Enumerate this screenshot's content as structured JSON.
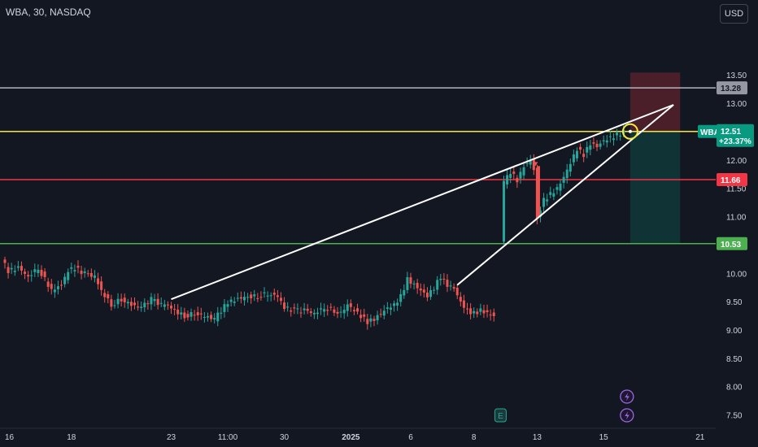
{
  "header": {
    "symbol": "WBA, 30, NASDAQ",
    "currency": "USD"
  },
  "colors": {
    "background": "#131722",
    "up": "#26a69a",
    "down": "#ef5350",
    "yellow": "#f5e83b",
    "red_line": "#f23645",
    "green_line": "#4caf50",
    "gray_line": "#b2b5be"
  },
  "chart_data": {
    "type": "candlestick",
    "ylim": [
      7.3,
      14.4
    ],
    "x_ticks": [
      {
        "label": "16",
        "x": 0
      },
      {
        "label": "18",
        "x": 2
      },
      {
        "label": "23",
        "x": 5
      },
      {
        "label": "11:00",
        "x": 6.7
      },
      {
        "label": "30",
        "x": 8.4
      },
      {
        "label": "2025",
        "x": 10.4
      },
      {
        "label": "6",
        "x": 12.2
      },
      {
        "label": "8",
        "x": 14.1
      },
      {
        "label": "13",
        "x": 16
      },
      {
        "label": "15",
        "x": 18
      },
      {
        "label": "21",
        "x": 20.9
      }
    ],
    "y_ticks": [
      "7.50",
      "8.00",
      "8.50",
      "9.00",
      "9.50",
      "10.00",
      "10.50",
      "11.00",
      "11.50",
      "12.00",
      "12.50",
      "13.00",
      "13.50"
    ],
    "price_path": [
      [
        0,
        10.25
      ],
      [
        0.2,
        10.05
      ],
      [
        0.5,
        10.1
      ],
      [
        0.8,
        9.95
      ],
      [
        1.1,
        10.1
      ],
      [
        1.3,
        9.9
      ],
      [
        1.5,
        9.7
      ],
      [
        1.8,
        9.8
      ],
      [
        2.0,
        10.05
      ],
      [
        2.2,
        10.1
      ],
      [
        2.5,
        10.0
      ],
      [
        2.8,
        9.95
      ],
      [
        3.0,
        9.7
      ],
      [
        3.3,
        9.45
      ],
      [
        3.6,
        9.55
      ],
      [
        3.9,
        9.45
      ],
      [
        4.2,
        9.4
      ],
      [
        4.5,
        9.55
      ],
      [
        4.8,
        9.45
      ],
      [
        5.0,
        9.45
      ],
      [
        5.2,
        9.35
      ],
      [
        5.5,
        9.25
      ],
      [
        5.8,
        9.3
      ],
      [
        6.1,
        9.25
      ],
      [
        6.4,
        9.2
      ],
      [
        6.6,
        9.35
      ],
      [
        6.8,
        9.5
      ],
      [
        7.1,
        9.55
      ],
      [
        7.4,
        9.6
      ],
      [
        7.7,
        9.6
      ],
      [
        8.0,
        9.65
      ],
      [
        8.3,
        9.6
      ],
      [
        8.5,
        9.4
      ],
      [
        8.8,
        9.35
      ],
      [
        9.1,
        9.35
      ],
      [
        9.4,
        9.3
      ],
      [
        9.7,
        9.4
      ],
      [
        10.0,
        9.35
      ],
      [
        10.2,
        9.3
      ],
      [
        10.4,
        9.45
      ],
      [
        10.6,
        9.35
      ],
      [
        10.8,
        9.25
      ],
      [
        11.0,
        9.15
      ],
      [
        11.2,
        9.2
      ],
      [
        11.4,
        9.3
      ],
      [
        11.6,
        9.4
      ],
      [
        11.8,
        9.45
      ],
      [
        12.0,
        9.6
      ],
      [
        12.2,
        9.9
      ],
      [
        12.4,
        9.8
      ],
      [
        12.6,
        9.7
      ],
      [
        12.8,
        9.6
      ],
      [
        13.0,
        9.75
      ],
      [
        13.2,
        9.95
      ],
      [
        13.4,
        9.8
      ],
      [
        13.6,
        9.75
      ],
      [
        13.8,
        9.5
      ],
      [
        14.0,
        9.35
      ],
      [
        14.2,
        9.3
      ],
      [
        14.4,
        9.35
      ],
      [
        14.6,
        9.3
      ],
      [
        14.8,
        9.25
      ]
    ],
    "price_path_2": [
      [
        15.0,
        10.6
      ],
      [
        15.1,
        11.6
      ],
      [
        15.3,
        11.8
      ],
      [
        15.5,
        11.65
      ],
      [
        15.7,
        11.9
      ],
      [
        15.9,
        12.0
      ],
      [
        16.0,
        11.85
      ],
      [
        16.1,
        11.0
      ],
      [
        16.3,
        11.3
      ],
      [
        16.5,
        11.4
      ],
      [
        16.7,
        11.5
      ],
      [
        16.9,
        11.7
      ],
      [
        17.1,
        11.95
      ],
      [
        17.3,
        12.2
      ],
      [
        17.5,
        12.1
      ],
      [
        17.7,
        12.3
      ],
      [
        17.9,
        12.25
      ],
      [
        18.1,
        12.35
      ],
      [
        18.3,
        12.4
      ],
      [
        18.5,
        12.45
      ],
      [
        18.7,
        12.5
      ]
    ],
    "horizontal_lines": [
      {
        "name": "gray",
        "value": 13.28,
        "label": "13.28"
      },
      {
        "name": "yellow",
        "value": 12.51
      },
      {
        "name": "red",
        "value": 11.66,
        "label": "11.66"
      },
      {
        "name": "green",
        "value": 10.53,
        "label": "10.53"
      }
    ],
    "current_price": {
      "label": "WBA",
      "price": "12.51",
      "change": "+23.37%"
    },
    "trendlines": [
      {
        "from": [
          5.0,
          9.55
        ],
        "to": [
          20.1,
          12.98
        ]
      },
      {
        "from": [
          13.6,
          9.8
        ],
        "to": [
          20.1,
          12.98
        ]
      }
    ],
    "position_box": {
      "x_start": 18.8,
      "x_end": 20.3,
      "entry": 12.51,
      "stop": 13.28,
      "target": 10.53
    },
    "circle": {
      "x": 18.8,
      "y": 12.51
    }
  },
  "markers": {
    "earnings": "E"
  }
}
